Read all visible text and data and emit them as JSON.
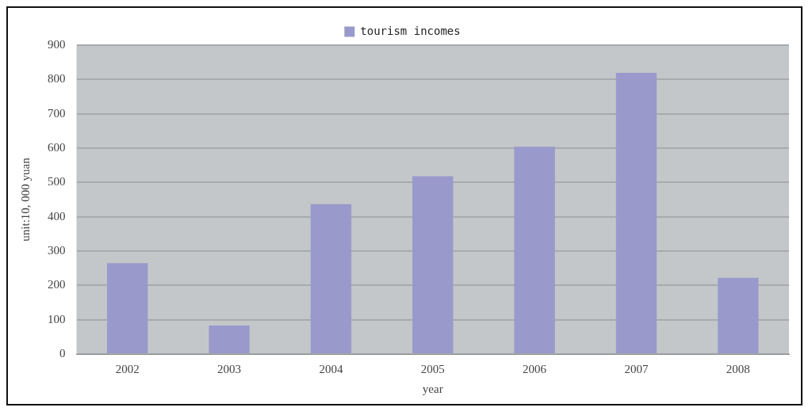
{
  "chart_data": {
    "type": "bar",
    "xlabel": "year",
    "ylabel": "unit:10, 000 yuan",
    "categories": [
      "2002",
      "2003",
      "2004",
      "2005",
      "2006",
      "2007",
      "2008"
    ],
    "series": [
      {
        "name": "tourism incomes",
        "color": "#9999cc",
        "values": [
          265,
          83,
          437,
          518,
          604,
          819,
          222
        ]
      }
    ],
    "ylim": [
      0,
      900
    ],
    "yticks": [
      0,
      100,
      200,
      300,
      400,
      500,
      600,
      700,
      800,
      900
    ],
    "grid": "y",
    "legend": "top"
  }
}
